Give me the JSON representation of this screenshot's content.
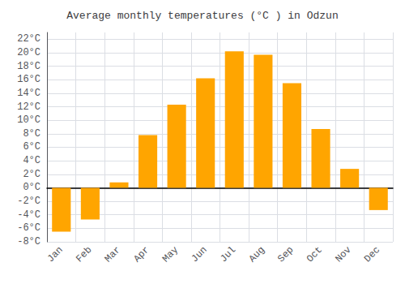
{
  "chart_data": {
    "type": "bar",
    "title": "Average monthly temperatures (°C ) in Odzun",
    "categories": [
      "Jan",
      "Feb",
      "Mar",
      "Apr",
      "May",
      "Jun",
      "Jul",
      "Aug",
      "Sep",
      "Oct",
      "Nov",
      "Dec"
    ],
    "values": [
      -6.5,
      -4.7,
      0.8,
      7.8,
      12.3,
      16.2,
      20.2,
      19.7,
      15.5,
      8.7,
      2.8,
      -3.3
    ],
    "color": "#FFA500",
    "ylim": [
      -8,
      23
    ],
    "yticks": [
      {
        "value": -8,
        "label": "-8°C"
      },
      {
        "value": -6,
        "label": "-6°C"
      },
      {
        "value": -4,
        "label": "-4°C"
      },
      {
        "value": -2,
        "label": "-2°C"
      },
      {
        "value": 0,
        "label": "0°C"
      },
      {
        "value": 2,
        "label": "2°C"
      },
      {
        "value": 4,
        "label": "4°C"
      },
      {
        "value": 6,
        "label": "6°C"
      },
      {
        "value": 8,
        "label": "8°C"
      },
      {
        "value": 10,
        "label": "10°C"
      },
      {
        "value": 12,
        "label": "12°C"
      },
      {
        "value": 14,
        "label": "14°C"
      },
      {
        "value": 16,
        "label": "16°C"
      },
      {
        "value": 18,
        "label": "18°C"
      },
      {
        "value": 20,
        "label": "20°C"
      },
      {
        "value": 22,
        "label": "22°C"
      }
    ],
    "grid": true
  }
}
